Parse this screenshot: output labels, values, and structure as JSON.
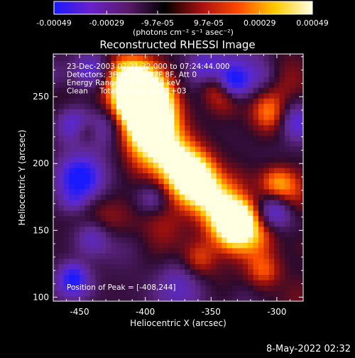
{
  "chart_data": {
    "type": "heatmap",
    "title": "Reconstructed RHESSI Image",
    "xlabel": "Heliocentric X (arcsec)",
    "ylabel": "Heliocentric Y (arcsec)",
    "xlim": [
      -470,
      -280
    ],
    "ylim": [
      97,
      282
    ],
    "x_ticks": [
      -450,
      -400,
      -350,
      -300
    ],
    "y_ticks": [
      100,
      150,
      200,
      250
    ],
    "colorbar": {
      "ticks": [
        -0.00049,
        -0.00029,
        -9.7e-05,
        9.7e-05,
        0.00029,
        0.00049
      ],
      "tick_labels": [
        "-0.00049",
        "-0.00029",
        "-9.7e-05",
        "9.7e-05",
        "0.00029",
        "0.00049"
      ],
      "range": [
        -0.00049,
        0.00049
      ],
      "unit_label": "(photons cm⁻² s⁻¹ asec⁻²)",
      "colors": [
        "#1a1aff",
        "#6a22c8",
        "#5a1a6a",
        "#000000",
        "#a81010",
        "#ff4a00",
        "#ffcc00",
        "#ffffe6"
      ]
    },
    "annotations": [
      "23-Dec-2003 07:21:32.000 to 07:24:44.000",
      "Detectors: 3F 4F 5F 6F 7F 8F, Att 0",
      "Energy Range: 12.0 - 25.0 keV",
      "Clean     Total counts: 4.36E+03"
    ],
    "peak_label": "Position of Peak = [-408,244]",
    "peak": [
      -408,
      244
    ],
    "bright_ridge": [
      {
        "x": -413,
        "y": 262
      },
      {
        "x": -400,
        "y": 252
      },
      {
        "x": -395,
        "y": 238
      },
      {
        "x": -397,
        "y": 220
      },
      {
        "x": -380,
        "y": 205
      },
      {
        "x": -365,
        "y": 190
      },
      {
        "x": -350,
        "y": 175
      },
      {
        "x": -335,
        "y": 162
      },
      {
        "x": -318,
        "y": 150
      }
    ]
  },
  "footer": {
    "date": "8-May-2022 02:32"
  }
}
